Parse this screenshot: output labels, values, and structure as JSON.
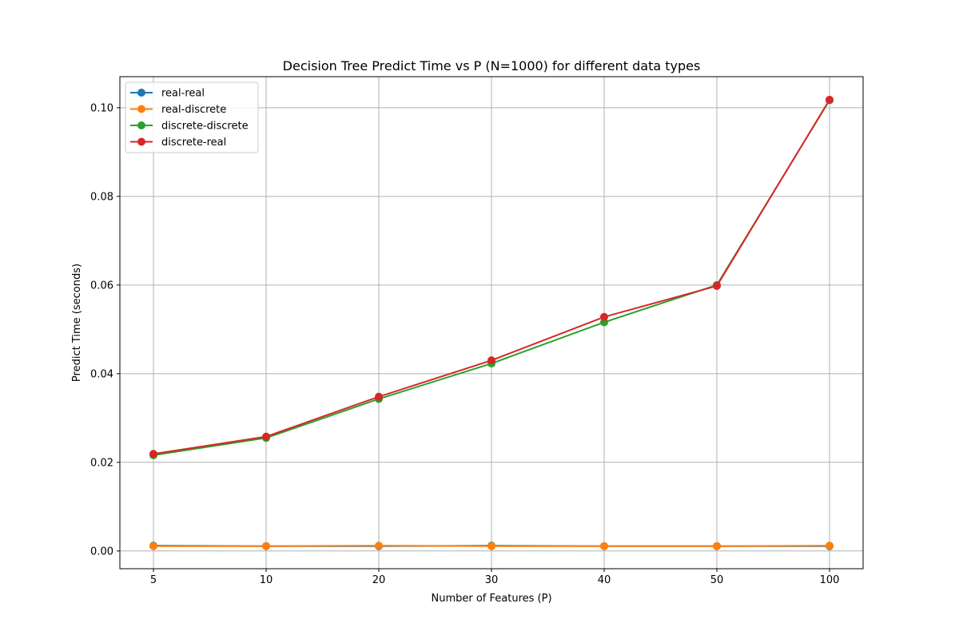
{
  "chart_data": {
    "type": "line",
    "title": "Decision Tree Predict Time vs P (N=1000) for different data types",
    "xlabel": "Number of Features (P)",
    "ylabel": "Predict Time (seconds)",
    "categories": [
      "5",
      "10",
      "20",
      "30",
      "40",
      "50",
      "100"
    ],
    "ylim": [
      -0.004,
      0.107
    ],
    "yticks": [
      0.0,
      0.02,
      0.04,
      0.06,
      0.08,
      0.1
    ],
    "ytick_labels": [
      "0.00",
      "0.02",
      "0.04",
      "0.06",
      "0.08",
      "0.10"
    ],
    "grid": true,
    "legend_position": "top-left",
    "series": [
      {
        "name": "real-real",
        "color": "#1f77b4",
        "values": [
          0.0012,
          0.0011,
          0.0011,
          0.0012,
          0.0011,
          0.0011,
          0.0011
        ]
      },
      {
        "name": "real-discrete",
        "color": "#ff7f0e",
        "values": [
          0.0011,
          0.0011,
          0.0012,
          0.0011,
          0.0011,
          0.0011,
          0.0012
        ]
      },
      {
        "name": "discrete-discrete",
        "color": "#2ca02c",
        "values": [
          0.0216,
          0.0255,
          0.0343,
          0.0423,
          0.0516,
          0.06,
          0.1017
        ]
      },
      {
        "name": "discrete-real",
        "color": "#d62728",
        "values": [
          0.0219,
          0.0258,
          0.0348,
          0.043,
          0.0528,
          0.0598,
          0.1018
        ]
      }
    ]
  }
}
